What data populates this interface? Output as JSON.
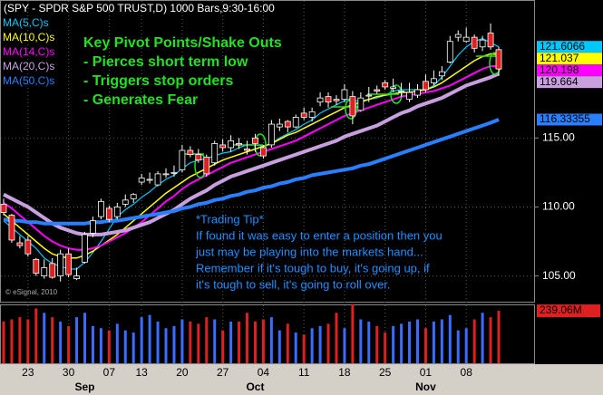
{
  "chart_data": {
    "type": "candlestick",
    "title": "(SPY - SPDR S&P 500 TRUST,D) 1000 Bars,9:30-16:00",
    "categories": [
      null,
      null,
      null,
      "23",
      null,
      null,
      null,
      null,
      "30",
      null,
      null,
      null,
      null,
      "07",
      null,
      null,
      null,
      "13",
      null,
      null,
      null,
      null,
      "20",
      null,
      null,
      null,
      null,
      "27",
      null,
      null,
      null,
      null,
      "04",
      null,
      null,
      null,
      null,
      "11",
      null,
      null,
      null,
      null,
      "18",
      null,
      null,
      null,
      null,
      "25",
      null,
      null,
      null,
      null,
      "01",
      null,
      null,
      null,
      null,
      "08",
      null,
      null,
      null,
      null
    ],
    "months": [
      null,
      null,
      null,
      null,
      null,
      null,
      null,
      null,
      null,
      null,
      "Sep",
      null,
      null,
      null,
      null,
      null,
      null,
      null,
      null,
      null,
      null,
      null,
      null,
      null,
      null,
      null,
      null,
      null,
      null,
      null,
      null,
      "Oct",
      null,
      null,
      null,
      null,
      null,
      null,
      null,
      null,
      null,
      null,
      null,
      null,
      null,
      null,
      null,
      null,
      null,
      null,
      null,
      null,
      "Nov",
      null,
      null,
      null,
      null,
      null,
      null,
      null,
      null,
      null
    ],
    "open": [
      110.2,
      109.4,
      107.4,
      107.6,
      106.2,
      105.0,
      105.9,
      105.0,
      106.6,
      104.8,
      106.0,
      108.1,
      109.3,
      109.9,
      109.3,
      110.2,
      110.6,
      111.8,
      112.0,
      111.6,
      112.4,
      112.5,
      112.7,
      114.1,
      113.8,
      113.6,
      113.2,
      114.5,
      114.3,
      114.6,
      114.2,
      115.0,
      114.3,
      114.5,
      115.8,
      116.2,
      115.8,
      116.8,
      116.5,
      117.6,
      118.0,
      117.8,
      117.8,
      118.0,
      117.0,
      118.1,
      118.5,
      119.0,
      118.6,
      118.4,
      117.8,
      118.1,
      119.1,
      119.0,
      119.5,
      120.5,
      122.3,
      122.0,
      122.3,
      121.6,
      122.6,
      121.4
    ],
    "high": [
      110.6,
      109.5,
      107.9,
      107.9,
      106.3,
      106.2,
      106.3,
      106.9,
      107.0,
      105.6,
      108.2,
      109.3,
      110.6,
      110.1,
      110.3,
      110.9,
      111.0,
      112.4,
      112.5,
      112.6,
      112.8,
      113.0,
      114.5,
      114.4,
      114.2,
      113.8,
      114.8,
      114.9,
      115.2,
      115.0,
      114.8,
      115.3,
      114.5,
      116.3,
      116.4,
      116.3,
      116.7,
      117.2,
      117.2,
      118.3,
      118.3,
      118.1,
      118.9,
      118.4,
      118.3,
      118.7,
      118.8,
      119.2,
      119.3,
      119.0,
      119.0,
      118.9,
      119.6,
      119.9,
      120.2,
      122.4,
      122.8,
      123.0,
      122.5,
      122.4,
      123.3,
      121.6
    ],
    "low": [
      109.4,
      107.4,
      107.0,
      106.4,
      105.0,
      104.8,
      104.8,
      104.6,
      104.9,
      104.7,
      105.9,
      107.8,
      109.1,
      108.9,
      109.1,
      110.0,
      110.3,
      111.6,
      111.7,
      111.5,
      112.1,
      112.2,
      112.5,
      113.6,
      113.2,
      112.2,
      113.0,
      114.0,
      114.0,
      114.2,
      113.8,
      114.0,
      113.5,
      114.3,
      115.5,
      115.4,
      115.7,
      116.3,
      116.2,
      117.3,
      117.2,
      117.4,
      117.6,
      116.0,
      116.9,
      117.6,
      118.2,
      118.5,
      118.3,
      118.0,
      117.6,
      117.9,
      118.3,
      118.8,
      119.2,
      120.4,
      122.0,
      121.9,
      121.2,
      121.3,
      121.4,
      119.5
    ],
    "close": [
      109.6,
      107.6,
      107.2,
      106.6,
      105.2,
      105.6,
      104.9,
      106.6,
      105.1,
      105.0,
      108.0,
      109.0,
      110.4,
      109.1,
      110.0,
      110.5,
      110.9,
      112.1,
      112.0,
      112.4,
      112.4,
      112.5,
      114.1,
      113.8,
      113.4,
      112.4,
      114.6,
      114.3,
      114.8,
      114.5,
      114.1,
      114.6,
      113.7,
      116.0,
      116.0,
      115.8,
      116.5,
      116.5,
      116.9,
      117.9,
      117.6,
      117.7,
      118.5,
      116.6,
      117.9,
      118.1,
      118.4,
      118.7,
      118.7,
      118.4,
      118.3,
      118.5,
      118.5,
      119.3,
      119.8,
      122.0,
      122.5,
      122.3,
      121.5,
      122.1,
      121.6,
      120.0
    ],
    "series": [
      {
        "name": "MA(5,C)s",
        "color": "#00c8ff",
        "width": 1.2,
        "last_label": "121.6066",
        "values": [
          109.0,
          108.5,
          108.0,
          107.5,
          107.0,
          106.3,
          105.9,
          105.7,
          105.5,
          105.5,
          106.0,
          106.7,
          107.5,
          108.4,
          109.3,
          109.8,
          110.2,
          110.7,
          111.1,
          111.6,
          112.0,
          112.3,
          112.8,
          113.2,
          113.4,
          113.5,
          113.7,
          113.9,
          114.0,
          114.3,
          114.5,
          114.5,
          114.4,
          114.6,
          115.0,
          115.3,
          115.6,
          116.0,
          116.3,
          116.8,
          117.1,
          117.4,
          117.7,
          117.7,
          117.7,
          117.8,
          117.9,
          118.1,
          118.4,
          118.5,
          118.5,
          118.5,
          118.5,
          118.8,
          119.4,
          120.2,
          121.0,
          121.6,
          122.0,
          122.2,
          121.9,
          121.6066
        ]
      },
      {
        "name": "MA(10,C)s",
        "color": "#ffff00",
        "width": 1.5,
        "last_label": "121.037",
        "values": [
          109.5,
          109.0,
          108.5,
          108.0,
          107.5,
          107.0,
          106.6,
          106.4,
          106.3,
          106.3,
          106.5,
          106.8,
          107.2,
          107.6,
          108.0,
          108.5,
          109.0,
          109.5,
          110.0,
          110.5,
          111.0,
          111.4,
          111.8,
          112.2,
          112.5,
          112.8,
          113.1,
          113.4,
          113.6,
          113.8,
          114.0,
          114.2,
          114.4,
          114.6,
          114.9,
          115.2,
          115.4,
          115.7,
          116.0,
          116.3,
          116.6,
          116.9,
          117.2,
          117.4,
          117.6,
          117.8,
          118.0,
          118.1,
          118.2,
          118.3,
          118.3,
          118.4,
          118.5,
          118.7,
          119.0,
          119.4,
          119.8,
          120.2,
          120.6,
          120.9,
          121.1,
          121.037
        ]
      },
      {
        "name": "MA(14,C)s",
        "color": "#ff00ff",
        "width": 2,
        "last_label": "120.198",
        "values": [
          110.3,
          109.9,
          109.4,
          108.9,
          108.4,
          107.9,
          107.5,
          107.2,
          107.0,
          106.9,
          106.9,
          107.0,
          107.2,
          107.5,
          107.8,
          108.1,
          108.5,
          108.9,
          109.4,
          109.9,
          110.4,
          110.8,
          111.3,
          111.7,
          112.0,
          112.3,
          112.6,
          112.9,
          113.2,
          113.4,
          113.6,
          113.8,
          114.0,
          114.2,
          114.4,
          114.6,
          114.8,
          115.1,
          115.4,
          115.7,
          116.0,
          116.3,
          116.6,
          116.8,
          117.0,
          117.2,
          117.4,
          117.6,
          117.8,
          118.0,
          118.1,
          118.2,
          118.3,
          118.4,
          118.6,
          118.8,
          119.1,
          119.4,
          119.7,
          120.0,
          120.2,
          120.198
        ]
      },
      {
        "name": "MA(20,C)s",
        "color": "#c8a0e0",
        "width": 4,
        "last_label": "119.664",
        "values": [
          110.9,
          110.6,
          110.3,
          110.0,
          109.6,
          109.2,
          108.8,
          108.5,
          108.3,
          108.1,
          108.0,
          108.0,
          108.0,
          108.1,
          108.2,
          108.3,
          108.5,
          108.7,
          108.9,
          109.2,
          109.5,
          109.8,
          110.2,
          110.6,
          110.9,
          111.2,
          111.6,
          111.9,
          112.2,
          112.4,
          112.6,
          112.8,
          113.0,
          113.2,
          113.4,
          113.6,
          113.8,
          114.0,
          114.2,
          114.4,
          114.6,
          114.8,
          115.1,
          115.3,
          115.5,
          115.7,
          115.9,
          116.2,
          116.5,
          116.8,
          117.0,
          117.3,
          117.5,
          117.7,
          117.9,
          118.2,
          118.5,
          118.8,
          119.0,
          119.2,
          119.4,
          119.664
        ]
      },
      {
        "name": "MA(50,C)s",
        "color": "#2a7fff",
        "width": 4,
        "last_label": "116.33355",
        "values": [
          109.1,
          109.0,
          109.0,
          108.9,
          108.9,
          108.8,
          108.8,
          108.8,
          108.8,
          108.8,
          108.8,
          108.9,
          108.9,
          109.0,
          109.0,
          109.1,
          109.2,
          109.3,
          109.4,
          109.5,
          109.6,
          109.7,
          109.9,
          110.0,
          110.2,
          110.3,
          110.5,
          110.6,
          110.8,
          110.9,
          111.1,
          111.2,
          111.4,
          111.5,
          111.7,
          111.8,
          112.0,
          112.1,
          112.3,
          112.4,
          112.5,
          112.6,
          112.7,
          112.8,
          113.0,
          113.1,
          113.3,
          113.5,
          113.7,
          113.9,
          114.1,
          114.3,
          114.5,
          114.7,
          114.9,
          115.1,
          115.3,
          115.5,
          115.7,
          115.9,
          116.1,
          116.33355
        ]
      }
    ],
    "up_color": "#000000",
    "down_color": "#e02020",
    "candle_edge": "#ffffff",
    "volume": {
      "values": [
        190,
        200,
        210,
        200,
        250,
        230,
        210,
        190,
        170,
        210,
        230,
        170,
        160,
        150,
        180,
        150,
        140,
        210,
        220,
        190,
        160,
        170,
        200,
        190,
        180,
        210,
        200,
        150,
        190,
        190,
        230,
        190,
        200,
        210,
        150,
        180,
        140,
        130,
        160,
        170,
        180,
        230,
        160,
        270,
        200,
        190,
        170,
        140,
        170,
        180,
        190,
        200,
        160,
        190,
        200,
        220,
        150,
        160,
        200,
        230,
        210,
        239.06
      ],
      "last_label": "239.06M",
      "up_color": "#3a6cff",
      "down_color": "#e02020",
      "ylim": [
        0,
        260
      ]
    },
    "ylim": [
      103.2,
      125.0
    ],
    "yticks": [
      {
        "value": 105,
        "label": "105.00"
      },
      {
        "value": 110,
        "label": "110.00"
      },
      {
        "value": 115,
        "label": "115.00"
      }
    ],
    "grid": true,
    "annotation": {
      "color": "#22e022",
      "lines": [
        "Key Pivot Points/Shake Outs",
        "- Pierces short term low",
        "- Triggers stop orders",
        "- Generates Fear"
      ]
    },
    "tip": {
      "color": "#1e8fff",
      "lines": [
        "*Trading Tip*",
        "If found it was easy to enter a position then you",
        "just may be playing into the markets hand...",
        "Remember if it's tough to buy, it's going up, if",
        "it's tough to sell, it's going to roll over."
      ]
    },
    "copyright": "© eSignal, 2010"
  }
}
